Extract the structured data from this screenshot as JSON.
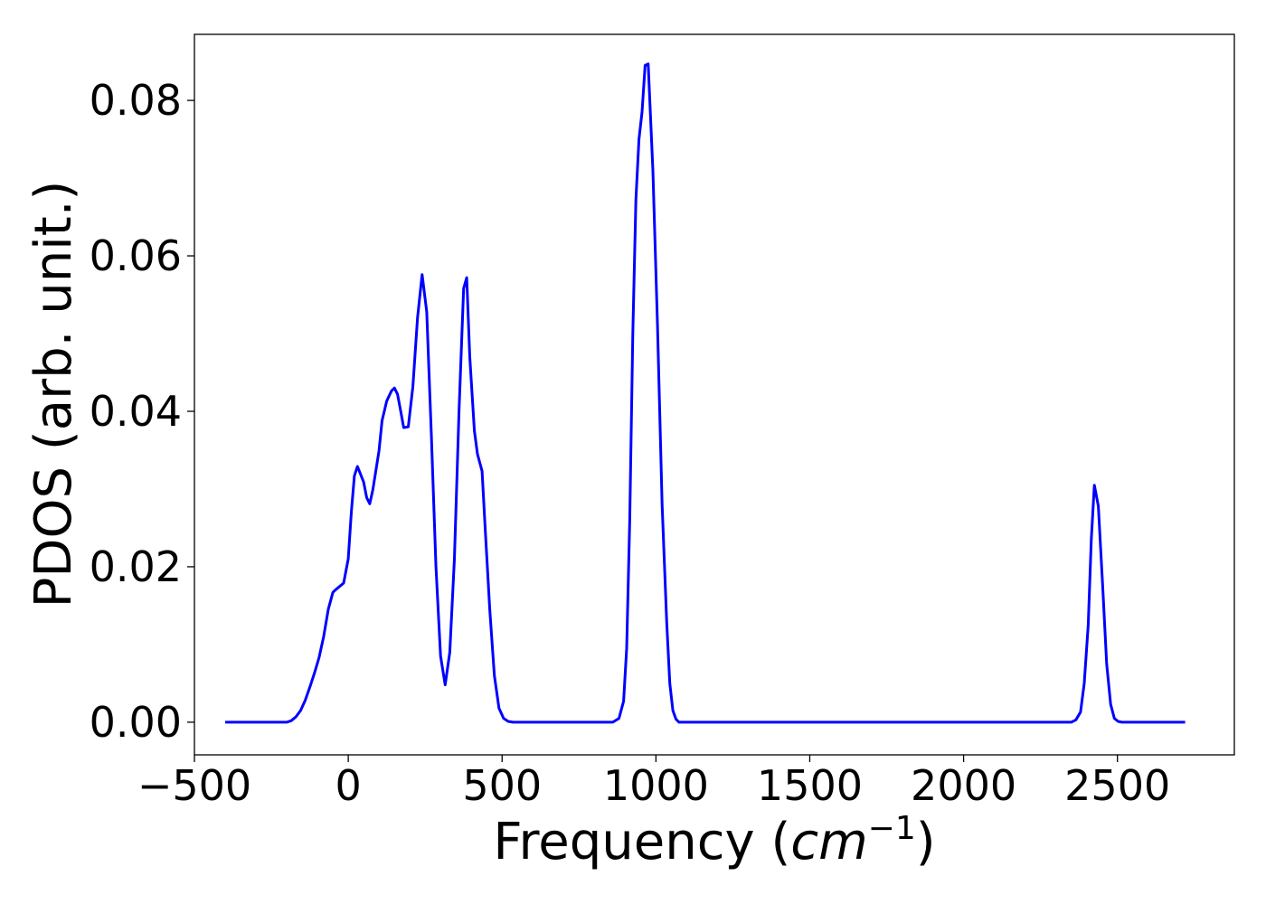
{
  "chart_data": {
    "type": "line",
    "title": "",
    "xlabel": "Frequency (",
    "xlabel_math": "cm",
    "xlabel_exp": "−1",
    "xlabel_close": ")",
    "ylabel": "PDOS (arb. unit.)",
    "xlim": [
      -500,
      2880
    ],
    "ylim": [
      -0.0042,
      0.0885
    ],
    "grid": false,
    "line_color": "#0000ff",
    "x_ticks": [
      {
        "value": -500,
        "label": "−500"
      },
      {
        "value": 0,
        "label": "0"
      },
      {
        "value": 500,
        "label": "500"
      },
      {
        "value": 1000,
        "label": "1000"
      },
      {
        "value": 1500,
        "label": "1500"
      },
      {
        "value": 2000,
        "label": "2000"
      },
      {
        "value": 2500,
        "label": "2500"
      }
    ],
    "y_ticks": [
      {
        "value": 0.0,
        "label": "0.00"
      },
      {
        "value": 0.02,
        "label": "0.02"
      },
      {
        "value": 0.04,
        "label": "0.04"
      },
      {
        "value": 0.06,
        "label": "0.06"
      },
      {
        "value": 0.08,
        "label": "0.08"
      }
    ],
    "series": [
      {
        "x": [
          -400,
          -200,
          -185,
          -170,
          -155,
          -140,
          -125,
          -110,
          -95,
          -80,
          -65,
          -50,
          -42,
          -15,
          0,
          10,
          20,
          30,
          50,
          60,
          70,
          80,
          100,
          110,
          125,
          140,
          150,
          160,
          170,
          180,
          195,
          210,
          225,
          240,
          255,
          270,
          285,
          300,
          315,
          330,
          345,
          360,
          375,
          385,
          395,
          410,
          420,
          435,
          445,
          460,
          475,
          490,
          505,
          520,
          535,
          545,
          560,
          575,
          590,
          600,
          610,
          620,
          640,
          700,
          800,
          860,
          880,
          895,
          905,
          915,
          925,
          935,
          945,
          955,
          965,
          975,
          990,
          1005,
          1020,
          1035,
          1045,
          1055,
          1065,
          1075,
          1085,
          1095,
          1105,
          1115,
          1125,
          1135,
          1145,
          1160,
          1200,
          1500,
          2000,
          2350,
          2365,
          2380,
          2392,
          2405,
          2415,
          2425,
          2438,
          2452,
          2465,
          2478,
          2490,
          2502,
          2514,
          2525,
          2540,
          2560,
          2600,
          2720
        ],
        "y": [
          0.0,
          0.0,
          0.0002,
          0.0007,
          0.0015,
          0.0028,
          0.0045,
          0.0063,
          0.0083,
          0.011,
          0.0145,
          0.0167,
          0.017,
          0.0179,
          0.021,
          0.027,
          0.0317,
          0.0329,
          0.0309,
          0.0289,
          0.0281,
          0.0299,
          0.0349,
          0.0388,
          0.0413,
          0.0426,
          0.043,
          0.0422,
          0.0401,
          0.0379,
          0.038,
          0.0432,
          0.052,
          0.0576,
          0.0528,
          0.037,
          0.02,
          0.0085,
          0.0048,
          0.009,
          0.021,
          0.04,
          0.0558,
          0.0572,
          0.047,
          0.0375,
          0.0345,
          0.0323,
          0.025,
          0.0145,
          0.006,
          0.0018,
          0.0005,
          0.0001,
          0.0,
          0.0,
          0.0,
          0.0,
          0.0,
          0.0,
          0.0,
          0.0,
          0.0,
          0.0,
          0.0,
          0.0,
          0.0005,
          0.0027,
          0.0095,
          0.026,
          0.05,
          0.0672,
          0.075,
          0.0785,
          0.0845,
          0.0847,
          0.071,
          0.051,
          0.028,
          0.0128,
          0.005,
          0.0015,
          0.0004,
          0.0,
          0.0,
          0.0,
          0.0,
          0.0,
          0.0,
          0.0,
          0.0,
          0.0,
          0.0,
          0.0,
          0.0,
          0.0,
          0.0003,
          0.0013,
          0.005,
          0.0125,
          0.0235,
          0.0305,
          0.0278,
          0.0175,
          0.0075,
          0.0023,
          0.0005,
          0.0001,
          0.0,
          0.0,
          0.0,
          0.0,
          0.0,
          0.0
        ]
      }
    ]
  }
}
